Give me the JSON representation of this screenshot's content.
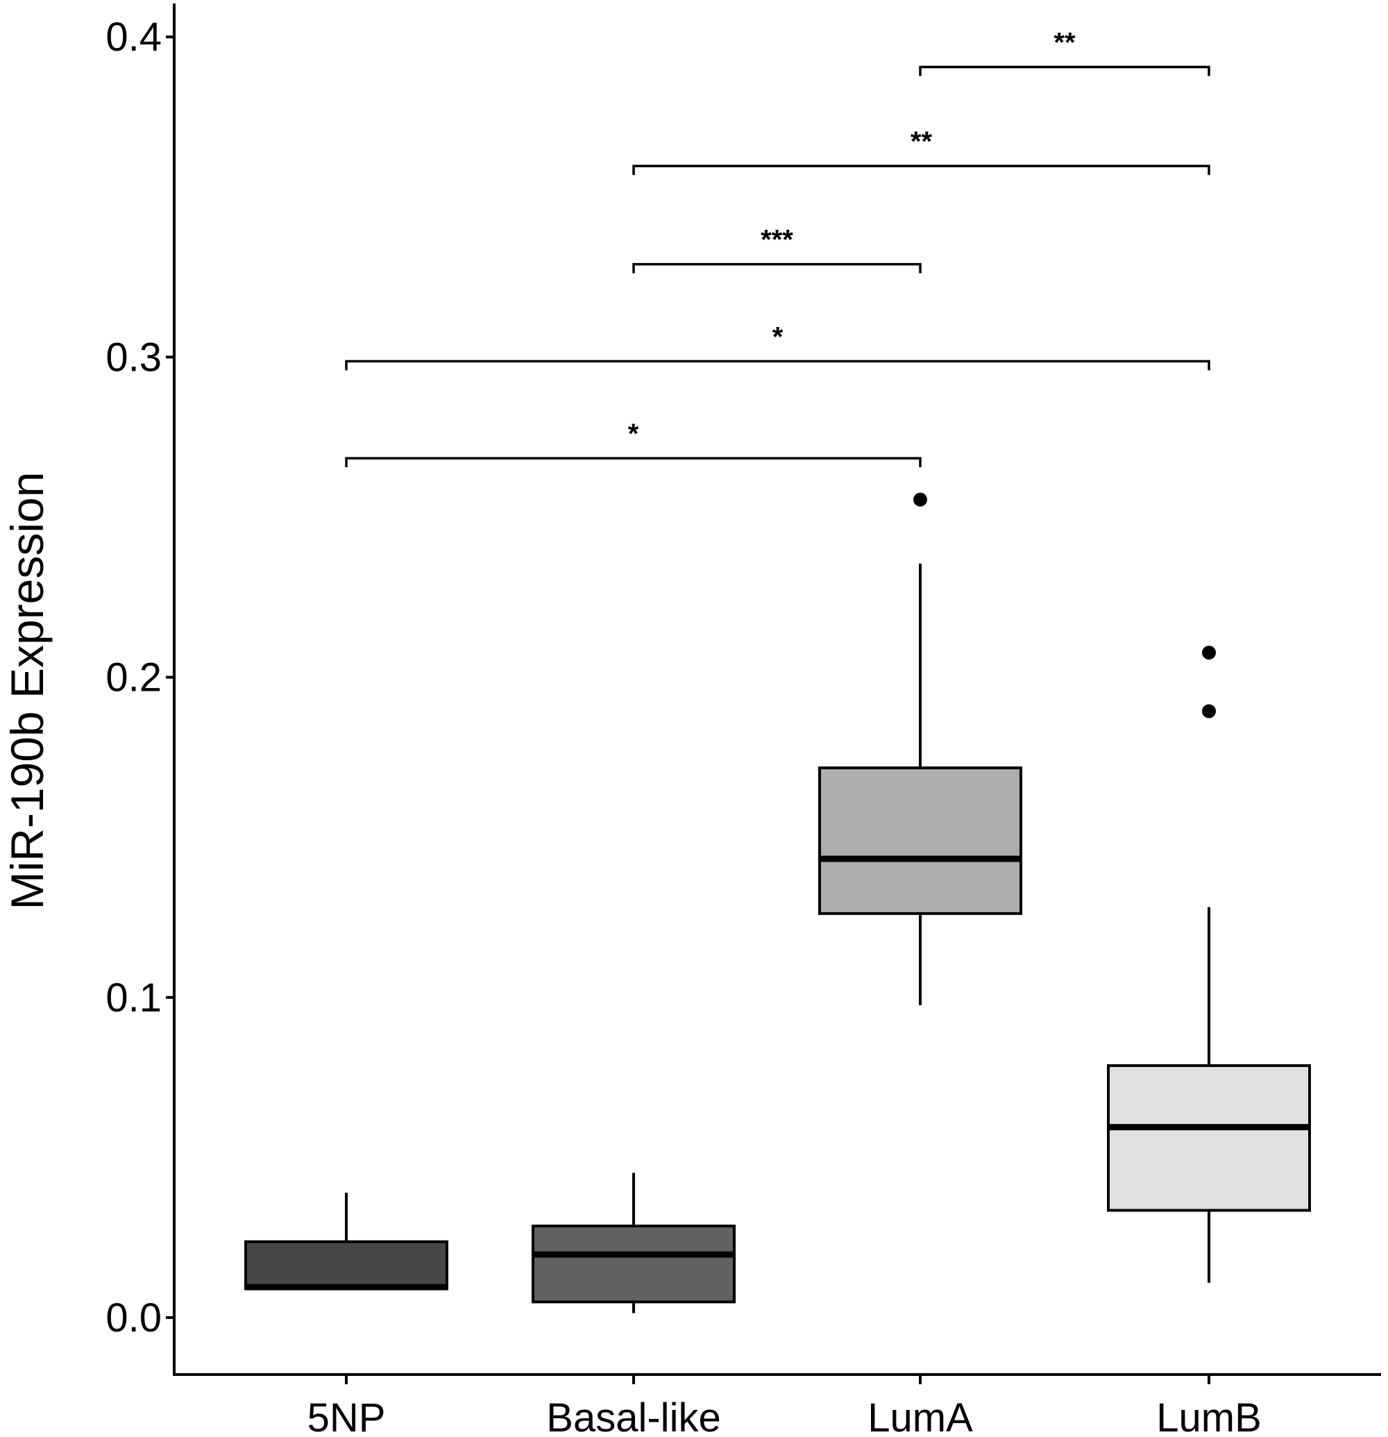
{
  "chart_data": {
    "type": "boxplot",
    "title": "",
    "xlabel": "",
    "ylabel": "MiR-190b Expression",
    "ylim": [
      -0.018,
      0.41
    ],
    "yticks": [
      "0.0",
      "0.1",
      "0.2",
      "0.3",
      "0.4"
    ],
    "ytick_values": [
      0.0,
      0.1,
      0.2,
      0.3,
      0.4
    ],
    "grid": false,
    "categories": [
      "5NP",
      "Basal-like",
      "LumA",
      "LumB"
    ],
    "boxes": [
      {
        "category": "5NP",
        "whisker_low": 0.009,
        "q1": 0.009,
        "median": 0.0095,
        "q3": 0.0237,
        "whisker_high": 0.039,
        "outliers": [],
        "fill": "#464646"
      },
      {
        "category": "Basal-like",
        "whisker_low": 0.0014,
        "q1": 0.0049,
        "median": 0.0197,
        "q3": 0.0286,
        "whisker_high": 0.0452,
        "outliers": [],
        "fill": "#626262"
      },
      {
        "category": "LumA",
        "whisker_low": 0.0976,
        "q1": 0.1262,
        "median": 0.1433,
        "q3": 0.1717,
        "whisker_high": 0.2355,
        "outliers": [
          0.2555
        ],
        "fill": "#adadad"
      },
      {
        "category": "LumB",
        "whisker_low": 0.0109,
        "q1": 0.0335,
        "median": 0.0595,
        "q3": 0.0787,
        "whisker_high": 0.1282,
        "outliers": [
          0.2077,
          0.1894
        ],
        "fill": "#e0e0e0"
      }
    ],
    "significance": [
      {
        "from": "LumA",
        "to": "LumB",
        "y": 0.3906,
        "label": "**"
      },
      {
        "from": "Basal-like",
        "to": "LumB",
        "y": 0.3597,
        "label": "**"
      },
      {
        "from": "Basal-like",
        "to": "LumA",
        "y": 0.329,
        "label": "***"
      },
      {
        "from": "5NP",
        "to": "LumB",
        "y": 0.2987,
        "label": "*"
      },
      {
        "from": "5NP",
        "to": "LumA",
        "y": 0.2684,
        "label": "*"
      }
    ]
  }
}
